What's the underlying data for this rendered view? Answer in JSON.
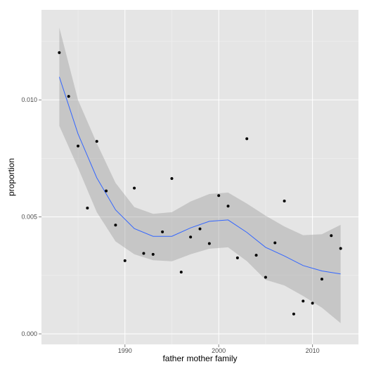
{
  "chart_data": {
    "type": "scatter",
    "xlabel": "father mother family",
    "ylabel": "proportion",
    "xlim": [
      1981.1,
      2014.9
    ],
    "ylim": [
      -0.00045,
      0.01385
    ],
    "x_ticks": [
      1990,
      2000,
      2010
    ],
    "x_tick_labels": [
      "1990",
      "2000",
      "2010"
    ],
    "y_ticks": [
      0.0,
      0.005,
      0.01
    ],
    "y_tick_labels": [
      "0.000",
      "0.005",
      "0.010"
    ],
    "grid": true,
    "colors": {
      "panel": "#e5e5e5",
      "grid_major": "#ffffff",
      "grid_minor": "#f2f2f2",
      "points": "#000000",
      "smooth_line": "#3366ff",
      "ribbon": "#999999"
    },
    "points": [
      {
        "x": 1983,
        "y": 0.01202
      },
      {
        "x": 1984,
        "y": 0.01015
      },
      {
        "x": 1985,
        "y": 0.00803
      },
      {
        "x": 1986,
        "y": 0.00538
      },
      {
        "x": 1987,
        "y": 0.00823
      },
      {
        "x": 1988,
        "y": 0.00611
      },
      {
        "x": 1989,
        "y": 0.00465
      },
      {
        "x": 1990,
        "y": 0.00313
      },
      {
        "x": 1991,
        "y": 0.00623
      },
      {
        "x": 1992,
        "y": 0.00344
      },
      {
        "x": 1993,
        "y": 0.0034
      },
      {
        "x": 1994,
        "y": 0.00436
      },
      {
        "x": 1995,
        "y": 0.00664
      },
      {
        "x": 1996,
        "y": 0.00264
      },
      {
        "x": 1997,
        "y": 0.00414
      },
      {
        "x": 1998,
        "y": 0.00449
      },
      {
        "x": 1999,
        "y": 0.00386
      },
      {
        "x": 2000,
        "y": 0.00591
      },
      {
        "x": 2001,
        "y": 0.00546
      },
      {
        "x": 2002,
        "y": 0.00325
      },
      {
        "x": 2003,
        "y": 0.00834
      },
      {
        "x": 2004,
        "y": 0.00336
      },
      {
        "x": 2005,
        "y": 0.00242
      },
      {
        "x": 2006,
        "y": 0.00389
      },
      {
        "x": 2007,
        "y": 0.00568
      },
      {
        "x": 2008,
        "y": 0.00085
      },
      {
        "x": 2009,
        "y": 0.0014
      },
      {
        "x": 2010,
        "y": 0.00131
      },
      {
        "x": 2011,
        "y": 0.00234
      },
      {
        "x": 2012,
        "y": 0.0042
      },
      {
        "x": 2013,
        "y": 0.00365
      }
    ],
    "smooth": {
      "x": [
        1983,
        1985,
        1987,
        1989,
        1991,
        1993,
        1995,
        1997,
        1999,
        2001,
        2003,
        2005,
        2007,
        2009,
        2011,
        2013
      ],
      "y": [
        0.01098,
        0.00855,
        0.00667,
        0.0053,
        0.0045,
        0.00417,
        0.00417,
        0.00453,
        0.00481,
        0.00487,
        0.00434,
        0.0037,
        0.00333,
        0.00292,
        0.00269,
        0.00256
      ],
      "ymin": [
        0.00889,
        0.0071,
        0.0052,
        0.00395,
        0.0034,
        0.00315,
        0.0031,
        0.0034,
        0.00364,
        0.0037,
        0.00311,
        0.00231,
        0.00207,
        0.00162,
        0.00112,
        0.00046
      ],
      "ymax": [
        0.01309,
        0.01,
        0.00815,
        0.00645,
        0.00542,
        0.00513,
        0.0052,
        0.00566,
        0.00598,
        0.00604,
        0.00557,
        0.00505,
        0.00459,
        0.00422,
        0.00426,
        0.00466
      ]
    }
  }
}
